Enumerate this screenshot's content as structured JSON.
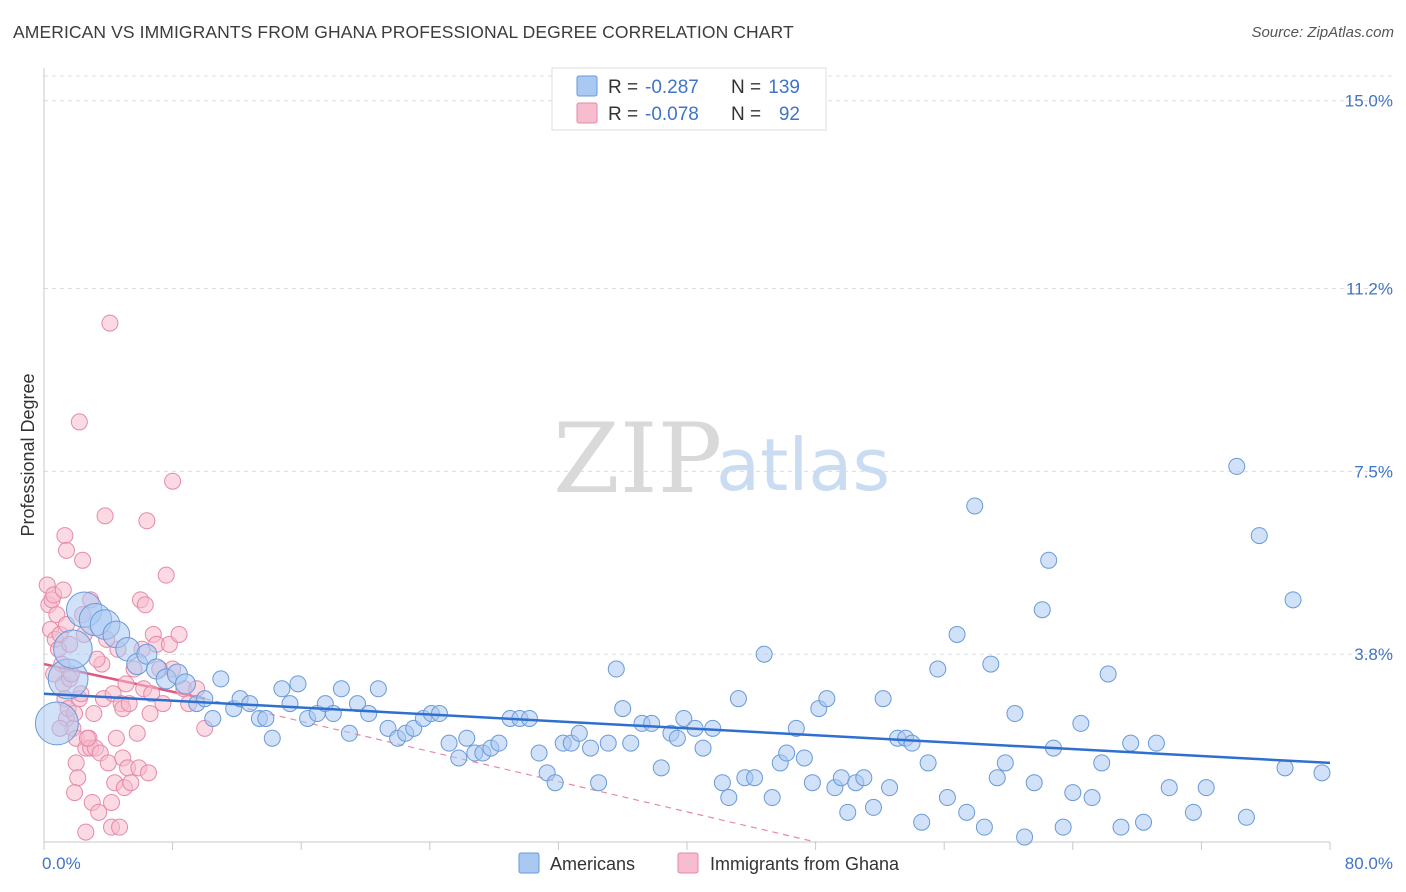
{
  "title": "AMERICAN VS IMMIGRANTS FROM GHANA PROFESSIONAL DEGREE CORRELATION CHART",
  "source": "Source: ZipAtlas.com",
  "watermark": {
    "zip": "ZIP",
    "atlas": "atlas"
  },
  "legend": {
    "rows": [
      {
        "r_label": "R =",
        "r_value": "-0.287",
        "n_label": "N =",
        "n_value": "139",
        "color": "#a9c8f2",
        "stroke": "#6a9ad8"
      },
      {
        "r_label": "R =",
        "r_value": "-0.078",
        "n_label": "N =",
        "n_value": "92",
        "color": "#f7bccd",
        "stroke": "#e58aa7"
      }
    ]
  },
  "bottom_legend": [
    {
      "label": "Americans",
      "color": "#a9c8f2",
      "stroke": "#6a9ad8"
    },
    {
      "label": "Immigrants from Ghana",
      "color": "#f7bccd",
      "stroke": "#e58aa7"
    }
  ],
  "chart_data": {
    "type": "scatter",
    "title": "AMERICAN VS IMMIGRANTS FROM GHANA PROFESSIONAL DEGREE CORRELATION CHART",
    "ylabel": "Professional Degree",
    "xlabel": "",
    "xlim": [
      0,
      80
    ],
    "ylim": [
      0,
      15.5
    ],
    "x_tick_labels": [
      "0.0%",
      "80.0%"
    ],
    "y_ticks": [
      3.8,
      7.5,
      11.2,
      15.0
    ],
    "y_tick_labels": [
      "3.8%",
      "7.5%",
      "11.2%",
      "15.0%"
    ],
    "grid": true,
    "series": [
      {
        "name": "Americans",
        "color": "#a9c8f2",
        "stroke": "#6a9ad8",
        "points": [
          [
            0.8,
            2.4
          ],
          [
            1.5,
            3.3
          ],
          [
            1.8,
            3.9
          ],
          [
            2.5,
            4.7
          ],
          [
            3.2,
            4.5
          ],
          [
            3.8,
            4.4
          ],
          [
            4.5,
            4.2
          ],
          [
            5.2,
            3.9
          ],
          [
            5.8,
            3.6
          ],
          [
            6.4,
            3.8
          ],
          [
            7.0,
            3.5
          ],
          [
            7.6,
            3.3
          ],
          [
            8.3,
            3.4
          ],
          [
            8.8,
            3.2
          ],
          [
            9.5,
            2.8
          ],
          [
            10.0,
            2.9
          ],
          [
            10.5,
            2.5
          ],
          [
            11.0,
            3.3
          ],
          [
            11.8,
            2.7
          ],
          [
            12.2,
            2.9
          ],
          [
            12.8,
            2.8
          ],
          [
            13.4,
            2.5
          ],
          [
            13.8,
            2.5
          ],
          [
            14.2,
            2.1
          ],
          [
            14.8,
            3.1
          ],
          [
            15.3,
            2.8
          ],
          [
            15.8,
            3.2
          ],
          [
            16.4,
            2.5
          ],
          [
            17.0,
            2.6
          ],
          [
            17.5,
            2.8
          ],
          [
            18.0,
            2.6
          ],
          [
            18.5,
            3.1
          ],
          [
            19.0,
            2.2
          ],
          [
            19.5,
            2.8
          ],
          [
            20.2,
            2.6
          ],
          [
            20.8,
            3.1
          ],
          [
            21.4,
            2.3
          ],
          [
            22.0,
            2.1
          ],
          [
            22.5,
            2.2
          ],
          [
            23.0,
            2.3
          ],
          [
            23.6,
            2.5
          ],
          [
            24.1,
            2.6
          ],
          [
            24.6,
            2.6
          ],
          [
            25.2,
            2.0
          ],
          [
            25.8,
            1.7
          ],
          [
            26.3,
            2.1
          ],
          [
            26.8,
            1.8
          ],
          [
            27.3,
            1.8
          ],
          [
            27.8,
            1.9
          ],
          [
            28.3,
            2.0
          ],
          [
            29.0,
            2.5
          ],
          [
            29.6,
            2.5
          ],
          [
            30.2,
            2.5
          ],
          [
            30.8,
            1.8
          ],
          [
            31.3,
            1.4
          ],
          [
            31.8,
            1.2
          ],
          [
            32.3,
            2.0
          ],
          [
            32.8,
            2.0
          ],
          [
            33.3,
            2.2
          ],
          [
            34.0,
            1.9
          ],
          [
            34.5,
            1.2
          ],
          [
            35.1,
            2.0
          ],
          [
            35.6,
            3.5
          ],
          [
            36.0,
            2.7
          ],
          [
            36.5,
            2.0
          ],
          [
            37.2,
            2.4
          ],
          [
            37.8,
            2.4
          ],
          [
            38.4,
            1.5
          ],
          [
            39.0,
            2.2
          ],
          [
            39.4,
            2.1
          ],
          [
            39.8,
            2.5
          ],
          [
            40.5,
            2.3
          ],
          [
            41.0,
            1.9
          ],
          [
            41.6,
            2.3
          ],
          [
            42.2,
            1.2
          ],
          [
            42.6,
            0.9
          ],
          [
            43.2,
            2.9
          ],
          [
            43.6,
            1.3
          ],
          [
            44.2,
            1.3
          ],
          [
            44.8,
            3.8
          ],
          [
            45.3,
            0.9
          ],
          [
            45.8,
            1.6
          ],
          [
            46.2,
            1.8
          ],
          [
            46.8,
            2.3
          ],
          [
            47.3,
            1.7
          ],
          [
            47.8,
            1.2
          ],
          [
            48.2,
            2.7
          ],
          [
            48.7,
            2.9
          ],
          [
            49.2,
            1.1
          ],
          [
            49.6,
            1.3
          ],
          [
            50.0,
            0.6
          ],
          [
            50.5,
            1.2
          ],
          [
            51.0,
            1.3
          ],
          [
            51.6,
            0.7
          ],
          [
            52.2,
            2.9
          ],
          [
            52.6,
            1.1
          ],
          [
            53.1,
            2.1
          ],
          [
            53.6,
            2.1
          ],
          [
            54.0,
            2.0
          ],
          [
            54.6,
            0.4
          ],
          [
            55.0,
            1.6
          ],
          [
            55.6,
            3.5
          ],
          [
            56.2,
            0.9
          ],
          [
            56.8,
            4.2
          ],
          [
            57.4,
            0.6
          ],
          [
            57.9,
            6.8
          ],
          [
            58.5,
            0.3
          ],
          [
            58.9,
            3.6
          ],
          [
            59.3,
            1.3
          ],
          [
            59.8,
            1.6
          ],
          [
            60.4,
            2.6
          ],
          [
            61.0,
            0.1
          ],
          [
            61.6,
            1.2
          ],
          [
            62.5,
            5.7
          ],
          [
            62.1,
            4.7
          ],
          [
            62.8,
            1.9
          ],
          [
            63.4,
            0.3
          ],
          [
            64.0,
            1.0
          ],
          [
            64.5,
            2.4
          ],
          [
            65.2,
            0.9
          ],
          [
            65.8,
            1.6
          ],
          [
            66.2,
            3.4
          ],
          [
            67.0,
            0.3
          ],
          [
            67.6,
            2.0
          ],
          [
            68.4,
            0.4
          ],
          [
            69.2,
            2.0
          ],
          [
            70.0,
            1.1
          ],
          [
            71.5,
            0.6
          ],
          [
            72.3,
            1.1
          ],
          [
            74.2,
            7.6
          ],
          [
            74.8,
            0.5
          ],
          [
            75.6,
            6.2
          ],
          [
            77.2,
            1.5
          ],
          [
            77.7,
            4.9
          ],
          [
            79.5,
            1.4
          ]
        ],
        "sizes_note": "larger markers near x=0-6",
        "trend": {
          "x1": 0,
          "y1": 3.0,
          "x2": 80,
          "y2": 1.6
        }
      },
      {
        "name": "Immigrants from Ghana",
        "color": "#f7bccd",
        "stroke": "#e58aa7",
        "points": [
          [
            0.2,
            5.2
          ],
          [
            0.3,
            4.8
          ],
          [
            0.4,
            4.3
          ],
          [
            0.5,
            4.9
          ],
          [
            0.6,
            5.0
          ],
          [
            0.7,
            4.1
          ],
          [
            0.8,
            4.6
          ],
          [
            0.9,
            3.9
          ],
          [
            1.0,
            4.2
          ],
          [
            1.1,
            3.6
          ],
          [
            1.2,
            3.2
          ],
          [
            1.3,
            2.9
          ],
          [
            1.4,
            2.5
          ],
          [
            1.5,
            2.7
          ],
          [
            1.6,
            3.3
          ],
          [
            1.2,
            5.1
          ],
          [
            1.3,
            6.2
          ],
          [
            1.4,
            5.9
          ],
          [
            1.6,
            4.0
          ],
          [
            1.7,
            3.4
          ],
          [
            1.8,
            2.3
          ],
          [
            1.9,
            2.6
          ],
          [
            2.0,
            2.1
          ],
          [
            2.0,
            1.6
          ],
          [
            2.1,
            1.3
          ],
          [
            2.2,
            2.9
          ],
          [
            2.3,
            3.0
          ],
          [
            2.4,
            4.6
          ],
          [
            2.5,
            4.2
          ],
          [
            2.6,
            1.9
          ],
          [
            2.2,
            8.5
          ],
          [
            2.4,
            5.7
          ],
          [
            2.6,
            0.2
          ],
          [
            2.8,
            2.1
          ],
          [
            2.9,
            1.9
          ],
          [
            3.0,
            0.8
          ],
          [
            3.1,
            2.6
          ],
          [
            3.2,
            1.9
          ],
          [
            3.4,
            0.6
          ],
          [
            3.5,
            1.8
          ],
          [
            3.6,
            3.6
          ],
          [
            3.7,
            2.9
          ],
          [
            3.8,
            6.6
          ],
          [
            4.0,
            1.6
          ],
          [
            4.2,
            0.8
          ],
          [
            4.2,
            0.3
          ],
          [
            4.3,
            3.0
          ],
          [
            4.4,
            1.2
          ],
          [
            4.5,
            2.1
          ],
          [
            4.6,
            3.9
          ],
          [
            4.7,
            0.3
          ],
          [
            4.8,
            2.8
          ],
          [
            4.9,
            1.7
          ],
          [
            5.0,
            1.1
          ],
          [
            5.1,
            3.2
          ],
          [
            5.2,
            1.5
          ],
          [
            4.1,
            10.5
          ],
          [
            5.4,
            1.2
          ],
          [
            5.6,
            3.5
          ],
          [
            5.8,
            2.2
          ],
          [
            5.9,
            1.5
          ],
          [
            6.0,
            4.9
          ],
          [
            6.1,
            3.9
          ],
          [
            6.2,
            3.1
          ],
          [
            6.4,
            6.5
          ],
          [
            6.5,
            1.4
          ],
          [
            6.6,
            2.6
          ],
          [
            6.7,
            3.0
          ],
          [
            6.8,
            4.2
          ],
          [
            7.0,
            4.0
          ],
          [
            7.2,
            3.5
          ],
          [
            7.4,
            2.8
          ],
          [
            7.6,
            5.4
          ],
          [
            7.8,
            4.0
          ],
          [
            8.0,
            3.5
          ],
          [
            8.4,
            4.2
          ],
          [
            8.7,
            3.1
          ],
          [
            9.0,
            2.8
          ],
          [
            9.5,
            3.1
          ],
          [
            10.0,
            2.3
          ],
          [
            8.0,
            7.3
          ],
          [
            4.9,
            2.7
          ],
          [
            3.3,
            3.7
          ],
          [
            2.7,
            2.1
          ],
          [
            1.9,
            1.0
          ],
          [
            1.0,
            2.3
          ],
          [
            0.6,
            3.4
          ],
          [
            1.4,
            4.4
          ],
          [
            2.9,
            4.9
          ],
          [
            3.9,
            4.1
          ],
          [
            5.3,
            2.8
          ],
          [
            6.3,
            4.8
          ]
        ],
        "trend": {
          "x1": 0,
          "y1": 3.6,
          "x2": 10,
          "y2": 2.9
        },
        "trend_ext": {
          "x1": 10,
          "y1": 2.9,
          "x2": 48,
          "y2": 0.0
        }
      }
    ]
  }
}
